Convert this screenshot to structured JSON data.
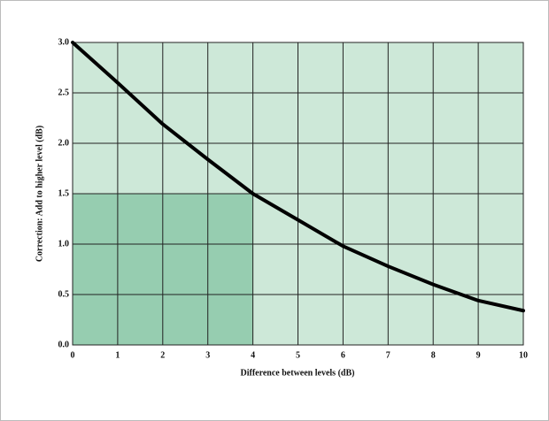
{
  "chart_data": {
    "type": "line",
    "xlabel": "Difference between levels (dB)",
    "ylabel": "Correction: Add to higher level (dB)",
    "x": [
      0,
      1,
      2,
      3,
      4,
      5,
      6,
      7,
      8,
      9,
      10
    ],
    "values": [
      3.0,
      2.6,
      2.19,
      1.84,
      1.5,
      1.24,
      0.98,
      0.78,
      0.6,
      0.44,
      0.34
    ],
    "color": "#000000",
    "xlim": [
      0,
      10
    ],
    "xticks": [
      0,
      1,
      2,
      3,
      4,
      5,
      6,
      7,
      8,
      9,
      10
    ],
    "ylim": [
      0,
      3
    ],
    "yticks": [
      {
        "value": 0,
        "label": "0.0"
      },
      0.5,
      {
        "value": 1,
        "label": "1.0"
      },
      1.5,
      {
        "value": 2,
        "label": "2.0"
      },
      2.5,
      {
        "value": 3,
        "label": "3.0"
      }
    ],
    "grid": true,
    "highlight_region": {
      "x": [
        0,
        4
      ],
      "y": [
        0,
        1.5
      ]
    }
  }
}
